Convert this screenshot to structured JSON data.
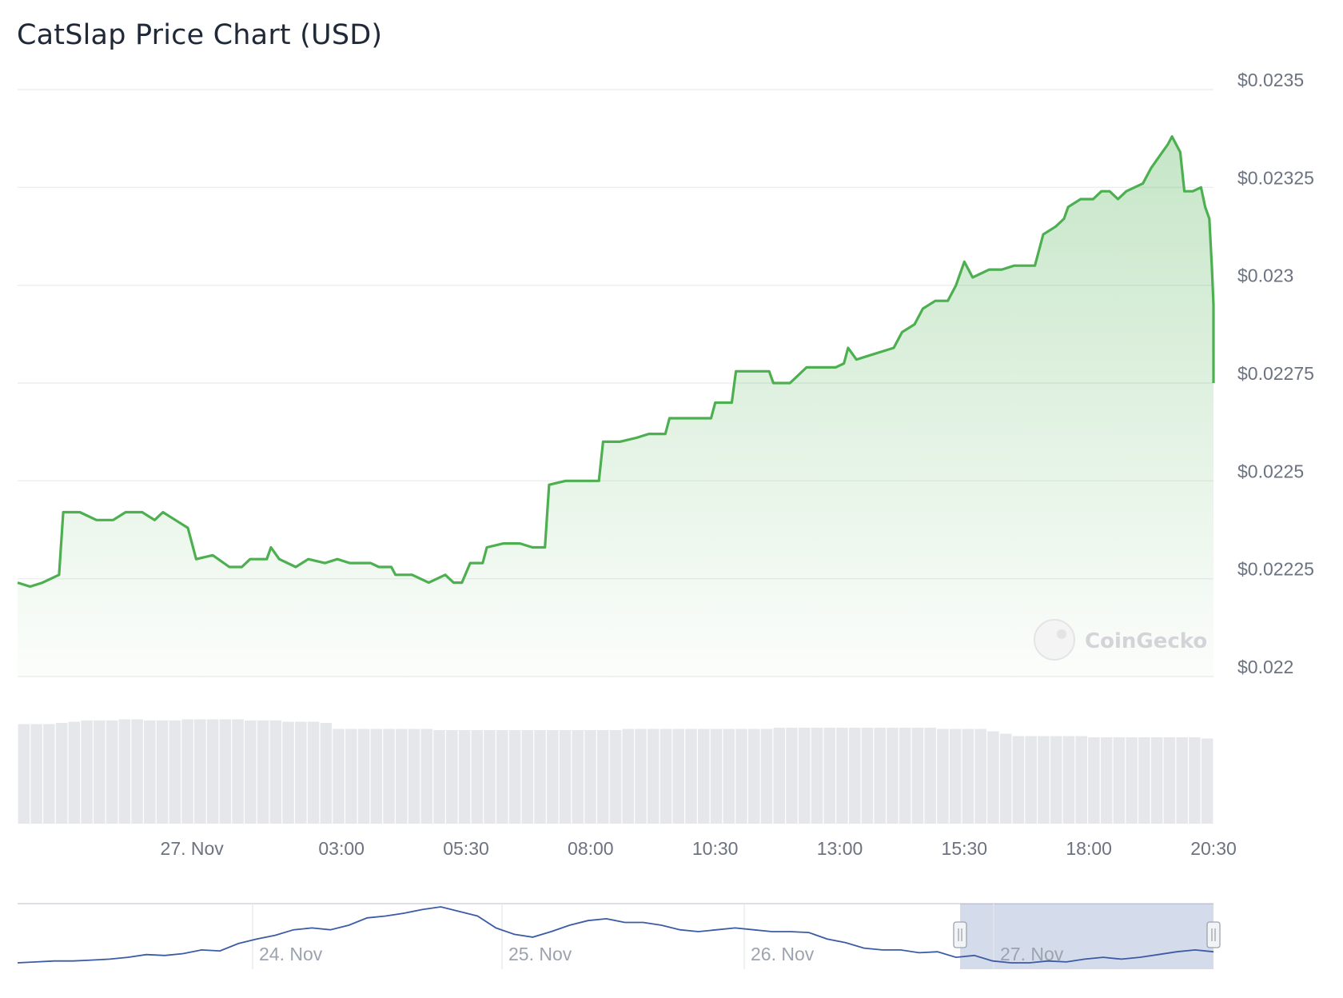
{
  "title": "CatSlap Price Chart (USD)",
  "watermark": "CoinGecko",
  "chart_data": {
    "type": "area",
    "title": "CatSlap Price Chart (USD)",
    "currency": "USD",
    "color": "#4caf50",
    "y_axis": {
      "range": [
        0.022,
        0.0235
      ],
      "ticks": [
        0.022,
        0.02225,
        0.0225,
        0.02275,
        0.023,
        0.02325,
        0.0235
      ],
      "tick_labels": [
        "$0.022",
        "$0.02225",
        "$0.0225",
        "$0.02275",
        "$0.023",
        "$0.02325",
        "$0.0235"
      ],
      "position": "right"
    },
    "x_axis": {
      "tick_labels": [
        "27. Nov",
        "03:00",
        "05:30",
        "08:00",
        "10:30",
        "13:00",
        "15:30",
        "18:00",
        "20:30"
      ],
      "tick_times": [
        "2024-11-27T00:00",
        "2024-11-27T03:00",
        "2024-11-27T05:30",
        "2024-11-27T08:00",
        "2024-11-27T10:30",
        "2024-11-27T13:00",
        "2024-11-27T15:30",
        "2024-11-27T18:00",
        "2024-11-27T20:30"
      ],
      "range": [
        "2024-11-26T20:30",
        "2024-11-27T20:30"
      ]
    },
    "series": [
      {
        "values": [
          [
            "2024-11-26T20:30",
            0.02224
          ],
          [
            "2024-11-26T20:45",
            0.02223
          ],
          [
            "2024-11-26T21:00",
            0.02224
          ],
          [
            "2024-11-26T21:20",
            0.02226
          ],
          [
            "2024-11-26T21:25",
            0.02242
          ],
          [
            "2024-11-26T21:45",
            0.02242
          ],
          [
            "2024-11-26T22:05",
            0.0224
          ],
          [
            "2024-11-26T22:25",
            0.0224
          ],
          [
            "2024-11-26T22:40",
            0.02242
          ],
          [
            "2024-11-26T23:00",
            0.02242
          ],
          [
            "2024-11-26T23:15",
            0.0224
          ],
          [
            "2024-11-26T23:25",
            0.02242
          ],
          [
            "2024-11-26T23:40",
            0.0224
          ],
          [
            "2024-11-26T23:55",
            0.02238
          ],
          [
            "2024-11-27T00:05",
            0.0223
          ],
          [
            "2024-11-27T00:25",
            0.02231
          ],
          [
            "2024-11-27T00:45",
            0.02228
          ],
          [
            "2024-11-27T01:00",
            0.02228
          ],
          [
            "2024-11-27T01:10",
            0.0223
          ],
          [
            "2024-11-27T01:30",
            0.0223
          ],
          [
            "2024-11-27T01:35",
            0.02233
          ],
          [
            "2024-11-27T01:45",
            0.0223
          ],
          [
            "2024-11-27T02:05",
            0.02228
          ],
          [
            "2024-11-27T02:20",
            0.0223
          ],
          [
            "2024-11-27T02:40",
            0.02229
          ],
          [
            "2024-11-27T02:55",
            0.0223
          ],
          [
            "2024-11-27T03:10",
            0.02229
          ],
          [
            "2024-11-27T03:35",
            0.02229
          ],
          [
            "2024-11-27T03:45",
            0.02228
          ],
          [
            "2024-11-27T04:00",
            0.02228
          ],
          [
            "2024-11-27T04:05",
            0.02226
          ],
          [
            "2024-11-27T04:25",
            0.02226
          ],
          [
            "2024-11-27T04:45",
            0.02224
          ],
          [
            "2024-11-27T05:05",
            0.02226
          ],
          [
            "2024-11-27T05:15",
            0.02224
          ],
          [
            "2024-11-27T05:25",
            0.02224
          ],
          [
            "2024-11-27T05:35",
            0.02229
          ],
          [
            "2024-11-27T05:50",
            0.02229
          ],
          [
            "2024-11-27T05:55",
            0.02233
          ],
          [
            "2024-11-27T06:15",
            0.02234
          ],
          [
            "2024-11-27T06:35",
            0.02234
          ],
          [
            "2024-11-27T06:50",
            0.02233
          ],
          [
            "2024-11-27T07:05",
            0.02233
          ],
          [
            "2024-11-27T07:10",
            0.02249
          ],
          [
            "2024-11-27T07:30",
            0.0225
          ],
          [
            "2024-11-27T07:50",
            0.0225
          ],
          [
            "2024-11-27T08:10",
            0.0225
          ],
          [
            "2024-11-27T08:15",
            0.0226
          ],
          [
            "2024-11-27T08:35",
            0.0226
          ],
          [
            "2024-11-27T08:55",
            0.02261
          ],
          [
            "2024-11-27T09:10",
            0.02262
          ],
          [
            "2024-11-27T09:30",
            0.02262
          ],
          [
            "2024-11-27T09:35",
            0.02266
          ],
          [
            "2024-11-27T09:55",
            0.02266
          ],
          [
            "2024-11-27T10:10",
            0.02266
          ],
          [
            "2024-11-27T10:25",
            0.02266
          ],
          [
            "2024-11-27T10:30",
            0.0227
          ],
          [
            "2024-11-27T10:50",
            0.0227
          ],
          [
            "2024-11-27T10:55",
            0.02278
          ],
          [
            "2024-11-27T11:15",
            0.02278
          ],
          [
            "2024-11-27T11:35",
            0.02278
          ],
          [
            "2024-11-27T11:40",
            0.02275
          ],
          [
            "2024-11-27T12:00",
            0.02275
          ],
          [
            "2024-11-27T12:10",
            0.02277
          ],
          [
            "2024-11-27T12:20",
            0.02279
          ],
          [
            "2024-11-27T12:40",
            0.02279
          ],
          [
            "2024-11-27T12:55",
            0.02279
          ],
          [
            "2024-11-27T13:05",
            0.0228
          ],
          [
            "2024-11-27T13:10",
            0.02284
          ],
          [
            "2024-11-27T13:20",
            0.02281
          ],
          [
            "2024-11-27T13:35",
            0.02282
          ],
          [
            "2024-11-27T13:50",
            0.02283
          ],
          [
            "2024-11-27T14:05",
            0.02284
          ],
          [
            "2024-11-27T14:15",
            0.02288
          ],
          [
            "2024-11-27T14:30",
            0.0229
          ],
          [
            "2024-11-27T14:40",
            0.02294
          ],
          [
            "2024-11-27T14:55",
            0.02296
          ],
          [
            "2024-11-27T15:10",
            0.02296
          ],
          [
            "2024-11-27T15:20",
            0.023
          ],
          [
            "2024-11-27T15:30",
            0.02306
          ],
          [
            "2024-11-27T15:40",
            0.02302
          ],
          [
            "2024-11-27T15:50",
            0.02303
          ],
          [
            "2024-11-27T16:00",
            0.02304
          ],
          [
            "2024-11-27T16:15",
            0.02304
          ],
          [
            "2024-11-27T16:30",
            0.02305
          ],
          [
            "2024-11-27T16:45",
            0.02305
          ],
          [
            "2024-11-27T16:55",
            0.02305
          ],
          [
            "2024-11-27T17:05",
            0.02313
          ],
          [
            "2024-11-27T17:20",
            0.02315
          ],
          [
            "2024-11-27T17:30",
            0.02317
          ],
          [
            "2024-11-27T17:35",
            0.0232
          ],
          [
            "2024-11-27T17:50",
            0.02322
          ],
          [
            "2024-11-27T18:05",
            0.02322
          ],
          [
            "2024-11-27T18:15",
            0.02324
          ],
          [
            "2024-11-27T18:25",
            0.02324
          ],
          [
            "2024-11-27T18:35",
            0.02322
          ],
          [
            "2024-11-27T18:45",
            0.02324
          ],
          [
            "2024-11-27T19:05",
            0.02326
          ],
          [
            "2024-11-27T19:15",
            0.0233
          ],
          [
            "2024-11-27T19:25",
            0.02333
          ],
          [
            "2024-11-27T19:35",
            0.02336
          ],
          [
            "2024-11-27T19:40",
            0.02338
          ],
          [
            "2024-11-27T19:50",
            0.02334
          ],
          [
            "2024-11-27T19:55",
            0.02324
          ],
          [
            "2024-11-27T20:05",
            0.02324
          ],
          [
            "2024-11-27T20:15",
            0.02325
          ],
          [
            "2024-11-27T20:20",
            0.0232
          ],
          [
            "2024-11-27T20:25",
            0.02317
          ],
          [
            "2024-11-27T20:28",
            0.02305
          ],
          [
            "2024-11-27T20:30",
            0.02295
          ],
          [
            "2024-11-27T20:31",
            0.02282
          ],
          [
            "2024-11-27T20:33",
            0.02282
          ],
          [
            "2024-11-27T20:35",
            0.02275
          ]
        ]
      }
    ],
    "volume": [
      0.83,
      0.83,
      0.83,
      0.84,
      0.85,
      0.86,
      0.86,
      0.86,
      0.87,
      0.87,
      0.86,
      0.86,
      0.86,
      0.87,
      0.87,
      0.87,
      0.87,
      0.87,
      0.86,
      0.86,
      0.86,
      0.85,
      0.85,
      0.85,
      0.84,
      0.79,
      0.79,
      0.79,
      0.79,
      0.79,
      0.79,
      0.79,
      0.79,
      0.78,
      0.78,
      0.78,
      0.78,
      0.78,
      0.78,
      0.78,
      0.78,
      0.78,
      0.78,
      0.78,
      0.78,
      0.78,
      0.78,
      0.78,
      0.79,
      0.79,
      0.79,
      0.79,
      0.79,
      0.79,
      0.79,
      0.79,
      0.79,
      0.79,
      0.79,
      0.79,
      0.8,
      0.8,
      0.8,
      0.8,
      0.8,
      0.8,
      0.8,
      0.8,
      0.8,
      0.8,
      0.8,
      0.8,
      0.8,
      0.79,
      0.79,
      0.79,
      0.79,
      0.77,
      0.75,
      0.73,
      0.73,
      0.73,
      0.73,
      0.73,
      0.73,
      0.72,
      0.72,
      0.72,
      0.72,
      0.72,
      0.72,
      0.72,
      0.72,
      0.72,
      0.71
    ],
    "navigator": {
      "labels": [
        "24. Nov",
        "25. Nov",
        "26. Nov",
        "27. Nov"
      ],
      "color": "#3b5ba5",
      "selection_range": [
        "2024-11-26T20:30",
        "2024-11-27T20:35"
      ],
      "values": [
        0.02224,
        0.02225,
        0.02226,
        0.02226,
        0.02227,
        0.02228,
        0.0223,
        0.02233,
        0.02232,
        0.02234,
        0.02238,
        0.02237,
        0.02245,
        0.0225,
        0.02254,
        0.0226,
        0.02262,
        0.0226,
        0.02265,
        0.02273,
        0.02275,
        0.02278,
        0.02282,
        0.02285,
        0.0228,
        0.02275,
        0.02262,
        0.02255,
        0.02252,
        0.02258,
        0.02265,
        0.0227,
        0.02272,
        0.02268,
        0.02268,
        0.02265,
        0.0226,
        0.02258,
        0.0226,
        0.02262,
        0.0226,
        0.02258,
        0.02258,
        0.02257,
        0.0225,
        0.02246,
        0.0224,
        0.02238,
        0.02238,
        0.02235,
        0.02236,
        0.0223,
        0.02232,
        0.02226,
        0.02224,
        0.02224,
        0.02226,
        0.02225,
        0.02228,
        0.0223,
        0.02228,
        0.0223,
        0.02233,
        0.02236,
        0.02238,
        0.02236
      ]
    }
  }
}
